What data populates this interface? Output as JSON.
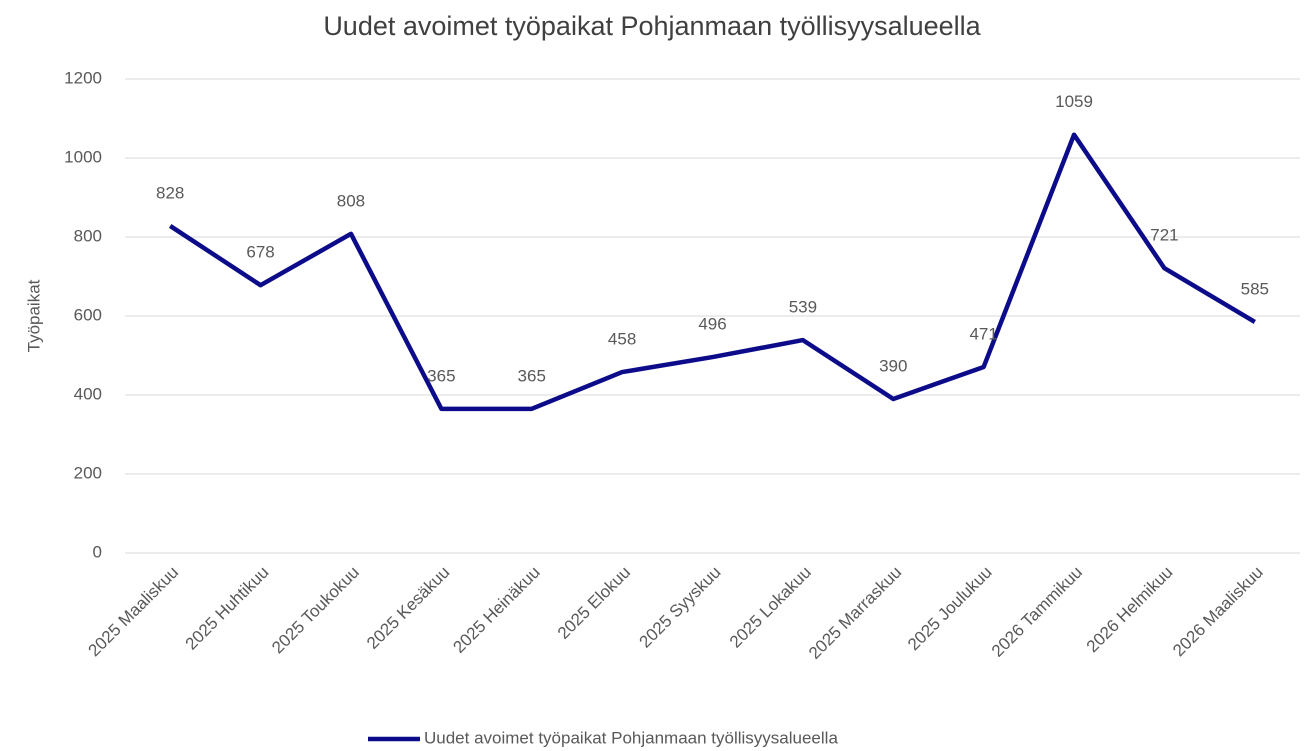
{
  "chart_data": {
    "type": "line",
    "title": "Uudet avoimet työpaikat Pohjanmaan työllisyysalueella",
    "y_label": "Työpaikat",
    "categories": [
      "2025 Maaliskuu",
      "2025 Huhtikuu",
      "2025 Toukokuu",
      "2025 Kesäkuu",
      "2025 Heinäkuu",
      "2025 Elokuu",
      "2025 Syyskuu",
      "2025 Lokakuu",
      "2025 Marraskuu",
      "2025 Joulukuu",
      "2026 Tammikuu",
      "2026 Helmikuu",
      "2026 Maaliskuu"
    ],
    "series": [
      {
        "name": "Uudet avoimet työpaikat Pohjanmaan työllisyysalueella",
        "color": "#0c0c8a",
        "values": [
          828,
          678,
          808,
          365,
          365,
          458,
          496,
          539,
          390,
          471,
          1059,
          721,
          585
        ]
      }
    ],
    "ylim": [
      0,
      1200
    ],
    "yticks": [
      0,
      200,
      400,
      600,
      800,
      1000,
      1200
    ],
    "grid": true,
    "legend": "bottom",
    "data_labels": true
  }
}
